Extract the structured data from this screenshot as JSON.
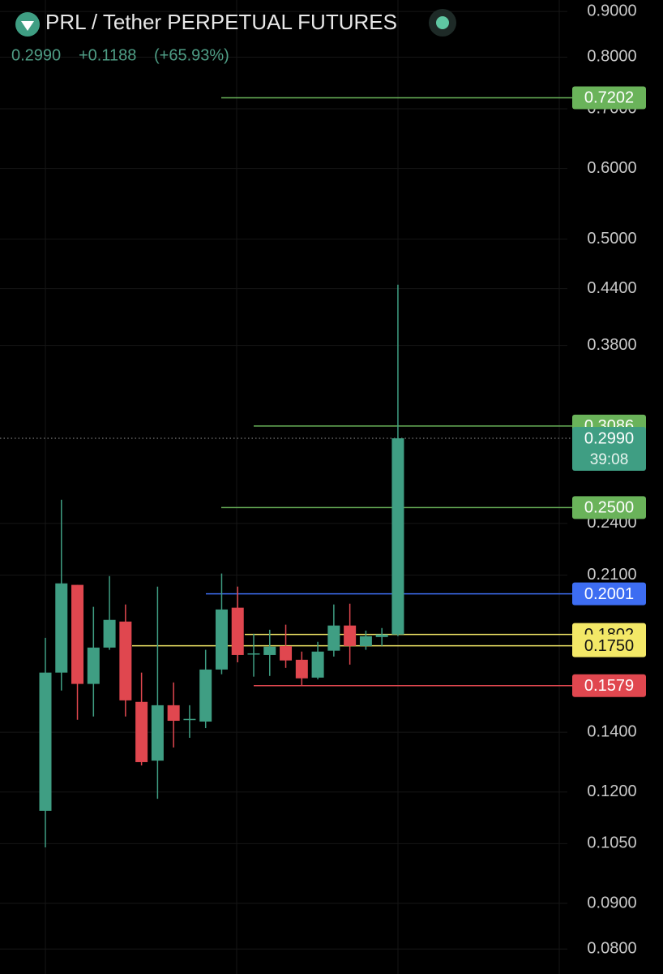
{
  "chart_data": {
    "type": "candlestick",
    "title": "PRL / Tether PERPETUAL FUTURES",
    "last_price": {
      "value": 0.299,
      "label": "0.2990",
      "countdown": "39:08"
    },
    "change": "+0.1188",
    "change_pct": "(+65.93%)",
    "log_scale": true,
    "grid": true,
    "up_color": "#3f9e83",
    "down_color": "#e0474f",
    "open": [
      0.1143,
      0.1633,
      0.2048,
      0.1586,
      0.1742,
      0.1863,
      0.1514,
      0.1301,
      0.1501,
      0.1446,
      0.1439,
      0.1646,
      0.1931,
      0.1712,
      0.1709,
      0.1749,
      0.1688,
      0.1612,
      0.1728,
      0.1844,
      0.1749,
      0.179,
      0.1802
    ],
    "high": [
      0.1786,
      0.2551,
      0.2048,
      0.1935,
      0.2095,
      0.1947,
      0.1633,
      0.2039,
      0.1592,
      0.1501,
      0.1732,
      0.2109,
      0.2039,
      0.1805,
      0.1824,
      0.1848,
      0.1724,
      0.1768,
      0.1947,
      0.1951,
      0.182,
      0.1832,
      0.4445
    ],
    "low": [
      0.104,
      0.1559,
      0.1446,
      0.1458,
      0.1732,
      0.1458,
      0.1285,
      0.1179,
      0.1346,
      0.138,
      0.1415,
      0.1626,
      0.1677,
      0.1616,
      0.1619,
      0.1653,
      0.1581,
      0.1605,
      0.1702,
      0.1667,
      0.1732,
      0.1749,
      0.1794
    ],
    "close": [
      0.1633,
      0.2056,
      0.1586,
      0.1742,
      0.1871,
      0.152,
      0.1296,
      0.1501,
      0.1442,
      0.1449,
      0.1646,
      0.1922,
      0.1709,
      0.1716,
      0.1746,
      0.1685,
      0.1609,
      0.1724,
      0.1844,
      0.1749,
      0.1794,
      0.1802,
      0.299
    ],
    "levels": {
      "values": [
        0.7202,
        0.3086,
        0.25,
        0.2001,
        0.1802,
        0.175,
        0.1579
      ],
      "value_labels": [
        "0.7202",
        "0.3086",
        "0.2500",
        "0.2001",
        "0.1802",
        "0.1750",
        "0.1579"
      ],
      "colors": [
        "#6ab35a",
        "#6ab35a",
        "#6ab35a",
        "#3d6df2",
        "#f3e867",
        "#f3e867",
        "#e0474f"
      ]
    },
    "ylim": [
      0.075,
      0.927
    ],
    "yticks": [
      {
        "value": 0.9,
        "label": "0.9000"
      },
      {
        "value": 0.8,
        "label": "0.8000"
      },
      {
        "value": 0.7,
        "label": "0.7000"
      },
      {
        "value": 0.6,
        "label": "0.6000"
      },
      {
        "value": 0.5,
        "label": "0.5000"
      },
      {
        "value": 0.44,
        "label": "0.4400"
      },
      {
        "value": 0.38,
        "label": "0.3800"
      },
      {
        "value": 0.24,
        "label": "0.2400"
      },
      {
        "value": 0.21,
        "label": "0.2100"
      },
      {
        "value": 0.14,
        "label": "0.1400"
      },
      {
        "value": 0.12,
        "label": "0.1200"
      },
      {
        "value": 0.105,
        "label": "0.1050"
      },
      {
        "value": 0.09,
        "label": "0.0900"
      },
      {
        "value": 0.08,
        "label": "0.0800"
      }
    ]
  }
}
